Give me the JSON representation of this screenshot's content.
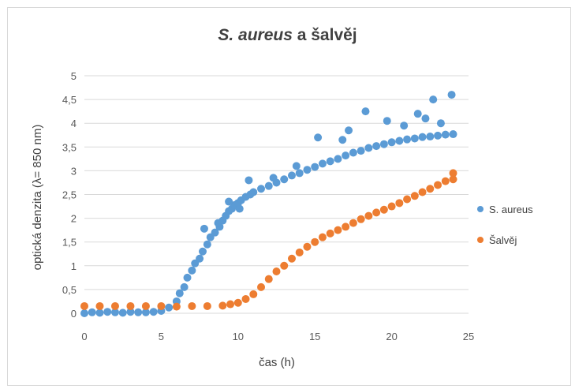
{
  "chart_data": {
    "type": "scatter",
    "title_italic": "S. aureus",
    "title_rest": " a šalvěj",
    "xlabel": "čas (h)",
    "ylabel": "optická denzita (λ= 850 nm)",
    "xlim": [
      0,
      25
    ],
    "ylim": [
      0,
      5
    ],
    "x_ticks": [
      "0",
      "5",
      "10",
      "15",
      "20",
      "25"
    ],
    "y_ticks": [
      "0",
      "0,5",
      "1",
      "1,5",
      "2",
      "2,5",
      "3",
      "3,5",
      "4",
      "4,5",
      "5"
    ],
    "grid": "horizontal",
    "legend_position": "right",
    "series": [
      {
        "name": "S. aureus",
        "color": "#5b9bd5",
        "points": [
          [
            0.0,
            0.0
          ],
          [
            0.5,
            0.02
          ],
          [
            1.0,
            0.01
          ],
          [
            1.5,
            0.03
          ],
          [
            2.0,
            0.02
          ],
          [
            2.5,
            0.01
          ],
          [
            3.0,
            0.03
          ],
          [
            3.5,
            0.02
          ],
          [
            4.0,
            0.02
          ],
          [
            4.5,
            0.03
          ],
          [
            5.0,
            0.05
          ],
          [
            5.5,
            0.12
          ],
          [
            6.0,
            0.25
          ],
          [
            6.2,
            0.42
          ],
          [
            6.5,
            0.55
          ],
          [
            6.7,
            0.75
          ],
          [
            7.0,
            0.9
          ],
          [
            7.2,
            1.05
          ],
          [
            7.5,
            1.15
          ],
          [
            7.7,
            1.3
          ],
          [
            7.8,
            1.78
          ],
          [
            8.0,
            1.45
          ],
          [
            8.2,
            1.6
          ],
          [
            8.5,
            1.7
          ],
          [
            8.8,
            1.82
          ],
          [
            9.0,
            1.95
          ],
          [
            9.2,
            2.05
          ],
          [
            9.4,
            2.15
          ],
          [
            9.6,
            2.2
          ],
          [
            9.8,
            2.28
          ],
          [
            10.0,
            2.32
          ],
          [
            10.2,
            2.38
          ],
          [
            10.5,
            2.45
          ],
          [
            10.8,
            2.5
          ],
          [
            10.7,
            2.8
          ],
          [
            11.0,
            2.55
          ],
          [
            11.5,
            2.62
          ],
          [
            12.0,
            2.68
          ],
          [
            12.5,
            2.75
          ],
          [
            13.0,
            2.82
          ],
          [
            13.5,
            2.9
          ],
          [
            14.0,
            2.95
          ],
          [
            14.5,
            3.02
          ],
          [
            15.0,
            3.08
          ],
          [
            15.5,
            3.15
          ],
          [
            16.0,
            3.2
          ],
          [
            16.5,
            3.25
          ],
          [
            17.0,
            3.32
          ],
          [
            17.5,
            3.38
          ],
          [
            18.0,
            3.42
          ],
          [
            18.3,
            4.25
          ],
          [
            18.5,
            3.48
          ],
          [
            19.0,
            3.52
          ],
          [
            19.5,
            3.56
          ],
          [
            20.0,
            3.6
          ],
          [
            20.5,
            3.63
          ],
          [
            21.0,
            3.66
          ],
          [
            21.5,
            3.68
          ],
          [
            22.0,
            3.71
          ],
          [
            22.5,
            3.72
          ],
          [
            22.7,
            4.5
          ],
          [
            23.0,
            3.74
          ],
          [
            23.5,
            3.76
          ],
          [
            23.9,
            4.6
          ],
          [
            24.0,
            3.77
          ],
          [
            15.2,
            3.7
          ],
          [
            16.8,
            3.65
          ],
          [
            17.2,
            3.85
          ],
          [
            19.7,
            4.05
          ],
          [
            20.8,
            3.95
          ],
          [
            21.7,
            4.2
          ],
          [
            22.2,
            4.1
          ],
          [
            23.2,
            4.0
          ],
          [
            12.3,
            2.85
          ],
          [
            13.8,
            3.1
          ],
          [
            10.1,
            2.2
          ],
          [
            9.4,
            2.35
          ],
          [
            8.7,
            1.9
          ]
        ]
      },
      {
        "name": "Šalvěj",
        "color": "#ed7d31",
        "points": [
          [
            0.0,
            0.15
          ],
          [
            1.0,
            0.15
          ],
          [
            2.0,
            0.15
          ],
          [
            3.0,
            0.15
          ],
          [
            4.0,
            0.15
          ],
          [
            5.0,
            0.15
          ],
          [
            6.0,
            0.14
          ],
          [
            7.0,
            0.15
          ],
          [
            8.0,
            0.15
          ],
          [
            9.0,
            0.16
          ],
          [
            9.5,
            0.19
          ],
          [
            10.0,
            0.22
          ],
          [
            10.5,
            0.3
          ],
          [
            11.0,
            0.4
          ],
          [
            11.5,
            0.55
          ],
          [
            12.0,
            0.72
          ],
          [
            12.5,
            0.88
          ],
          [
            13.0,
            1.0
          ],
          [
            13.5,
            1.15
          ],
          [
            14.0,
            1.28
          ],
          [
            14.5,
            1.4
          ],
          [
            15.0,
            1.5
          ],
          [
            15.5,
            1.6
          ],
          [
            16.0,
            1.68
          ],
          [
            16.5,
            1.75
          ],
          [
            17.0,
            1.82
          ],
          [
            17.5,
            1.9
          ],
          [
            18.0,
            1.98
          ],
          [
            18.5,
            2.05
          ],
          [
            19.0,
            2.12
          ],
          [
            19.5,
            2.18
          ],
          [
            20.0,
            2.25
          ],
          [
            20.5,
            2.32
          ],
          [
            21.0,
            2.4
          ],
          [
            21.5,
            2.47
          ],
          [
            22.0,
            2.55
          ],
          [
            22.5,
            2.62
          ],
          [
            23.0,
            2.7
          ],
          [
            23.5,
            2.78
          ],
          [
            24.0,
            2.82
          ],
          [
            24.0,
            2.95
          ]
        ]
      }
    ]
  }
}
